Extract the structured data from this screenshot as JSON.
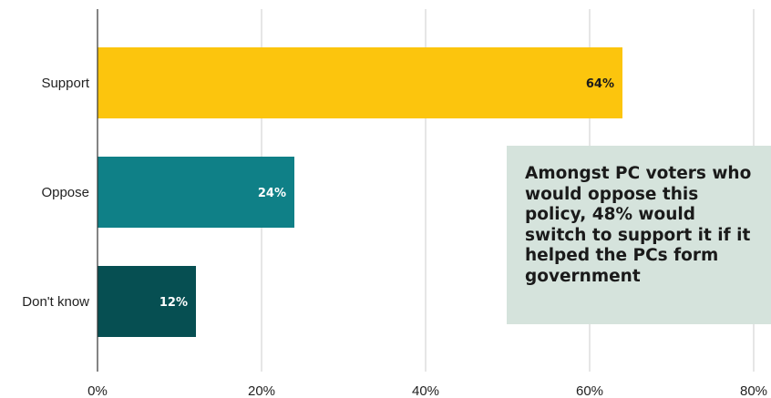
{
  "chart_data": {
    "type": "bar",
    "orientation": "horizontal",
    "categories": [
      "Support",
      "Oppose",
      "Don't know"
    ],
    "values": [
      64,
      24,
      12
    ],
    "value_labels": [
      "64%",
      "24%",
      "12%"
    ],
    "bar_colors": [
      "#fcc50d",
      "#0f8087",
      "#064f52"
    ],
    "value_label_colors": [
      "#1a1a1a",
      "#ffffff",
      "#ffffff"
    ],
    "x_ticks": [
      "0%",
      "20%",
      "40%",
      "60%",
      "80%"
    ],
    "xlim": [
      0,
      80
    ],
    "grid": true,
    "title": "",
    "xlabel": "",
    "ylabel": ""
  },
  "callout": {
    "text": "Amongst PC voters who would oppose this policy, 48% would switch to support it if it helped the PCs form government",
    "background": "#d5e3dc"
  }
}
